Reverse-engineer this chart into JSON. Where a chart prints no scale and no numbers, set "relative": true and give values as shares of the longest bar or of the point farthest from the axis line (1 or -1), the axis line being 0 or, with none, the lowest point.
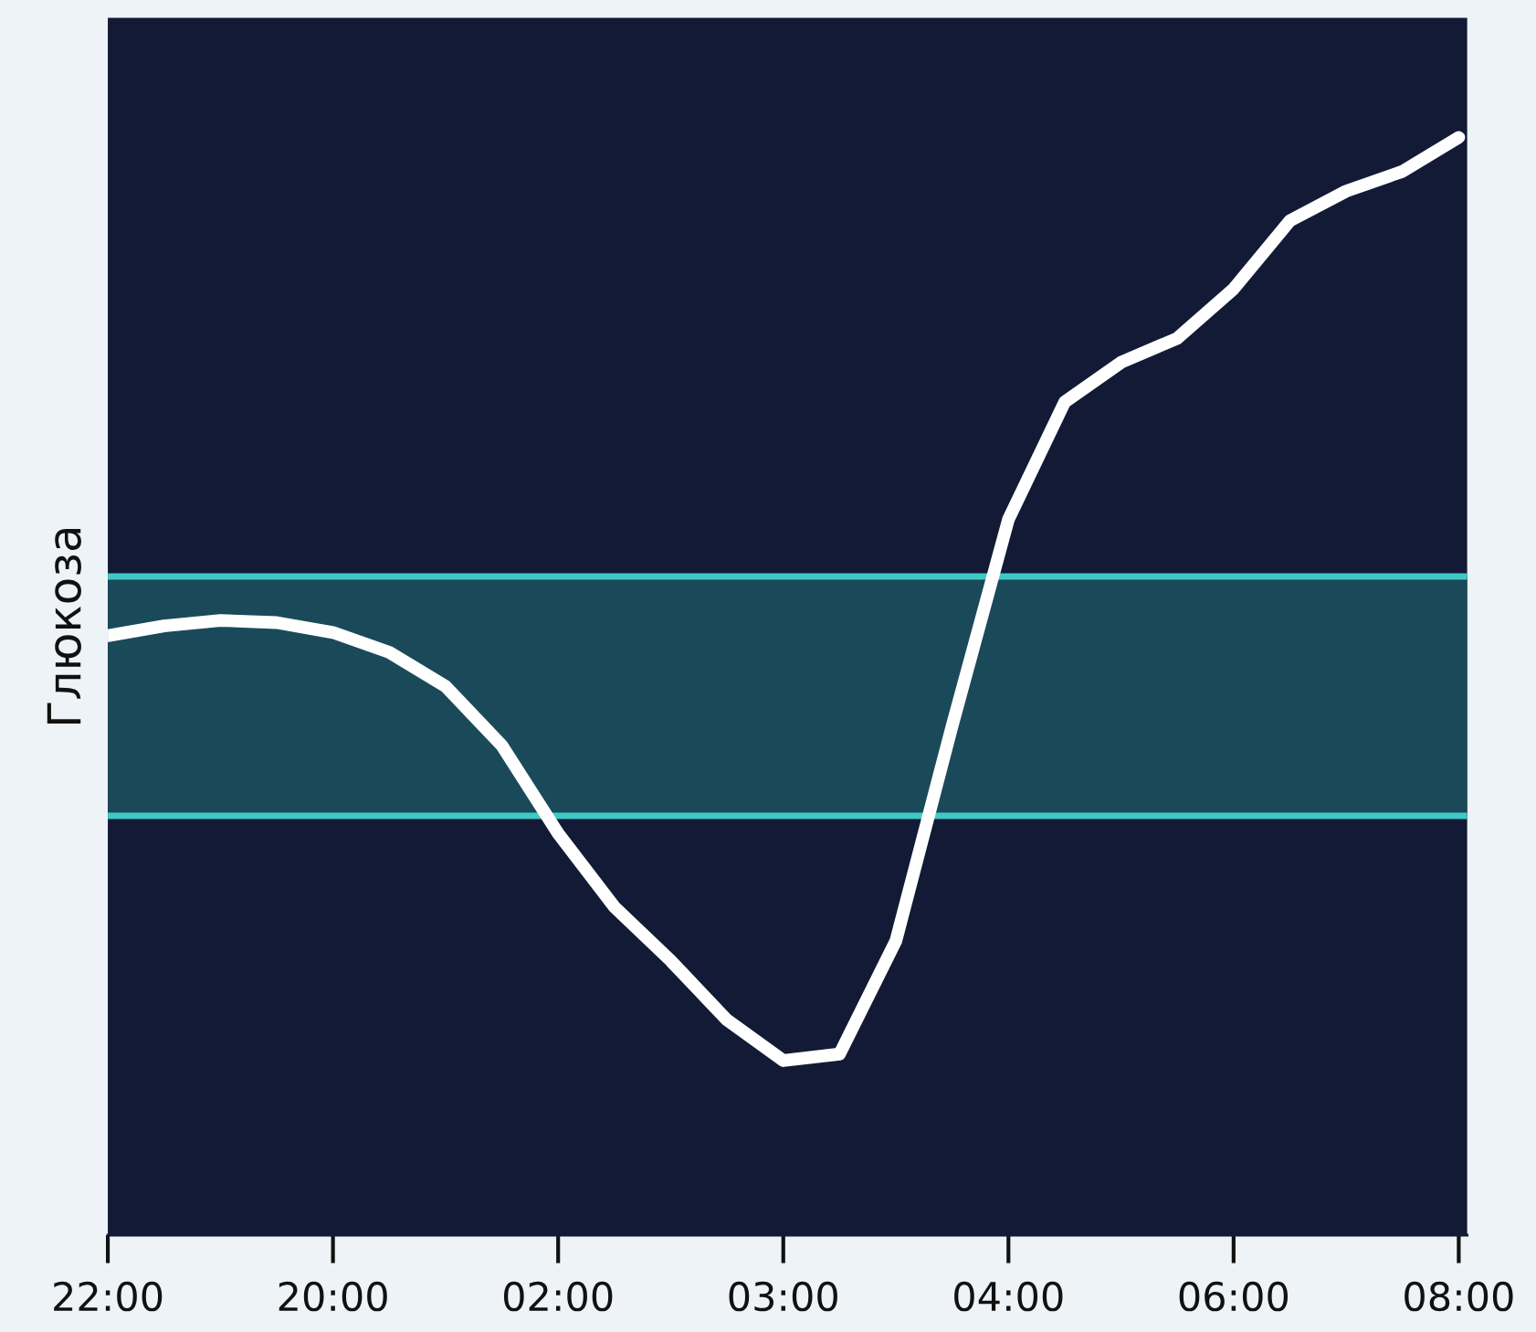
{
  "chart_data": {
    "type": "line",
    "relative": true,
    "ylabel": "Глюкоза",
    "categories": [
      "22:00",
      null,
      null,
      null,
      "20:00",
      null,
      null,
      null,
      "02:00",
      null,
      null,
      null,
      "03:00",
      null,
      null,
      null,
      "04:00",
      null,
      null,
      null,
      "06:00",
      null,
      null,
      null,
      "08:00"
    ],
    "series": [
      {
        "color": "#ffffff",
        "values": [
          0.546,
          0.555,
          0.56,
          0.558,
          0.549,
          0.531,
          0.5,
          0.446,
          0.366,
          0.299,
          0.25,
          0.196,
          0.159,
          0.165,
          0.268,
          0.464,
          0.652,
          0.759,
          0.795,
          0.817,
          0.862,
          0.924,
          0.951,
          0.969,
          1.0
        ]
      }
    ],
    "bands": [
      {
        "axis": "y",
        "from": 0.382,
        "to": 0.6,
        "color": "#1a4a5a"
      }
    ],
    "ref_lines": [
      {
        "axis": "y",
        "value": 0.6,
        "color": "#3ec9c6"
      },
      {
        "axis": "y",
        "value": 0.382,
        "color": "#3ec9c6"
      }
    ],
    "marker": "none",
    "line_style": "solid",
    "grid": false,
    "legend": false
  }
}
